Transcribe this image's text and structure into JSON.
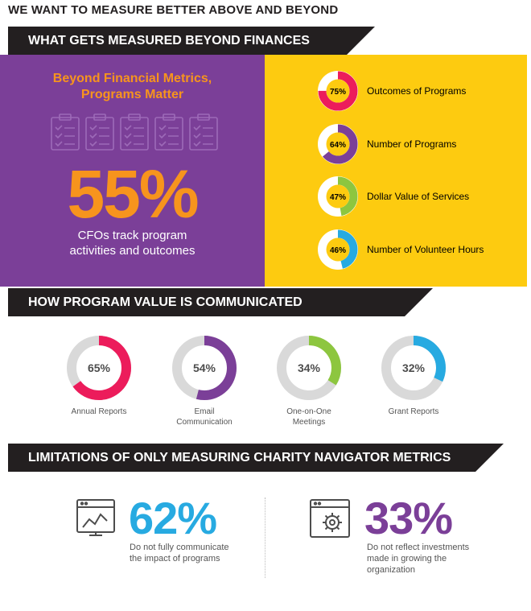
{
  "page_title": "WE WANT TO MEASURE BETTER ABOVE AND BEYOND",
  "sections": {
    "beyond_finances": "WHAT GETS MEASURED BEYOND FINANCES",
    "program_value": "HOW PROGRAM VALUE  IS COMMUNICATED",
    "limitations": "LIMITATIONS OF ONLY MEASURING CHARITY NAVIGATOR METRICS"
  },
  "highlight": {
    "heading_line1": "Beyond Financial Metrics,",
    "heading_line2": "Programs Matter",
    "value": "55%",
    "caption_line1": "CFOs track program",
    "caption_line2": "activities and outcomes"
  },
  "limits": [
    {
      "value": "62%",
      "line1": "Do not fully communicate",
      "line2": "the impact of programs",
      "line3": "",
      "color": "#27aae1"
    },
    {
      "value": "33%",
      "line1": "Do not reflect investments",
      "line2": "made in growing the",
      "line3": "organization",
      "color": "#7b3f98"
    }
  ],
  "colors": {
    "purple": "#7b3f98",
    "yellow": "#fdcb10",
    "orange": "#f7941d",
    "pink": "#ec1c5b",
    "green": "#8dc63f",
    "blue": "#27aae1",
    "grey": "#d9d9d9",
    "dark": "#231f20"
  },
  "chart_data": [
    {
      "type": "pie",
      "title": "WHAT GETS MEASURED BEYOND FINANCES",
      "categories": [
        "Outcomes of Programs",
        "Number of Programs",
        "Dollar Value of Services",
        "Number of Volunteer Hours"
      ],
      "values": [
        75,
        64,
        47,
        46
      ],
      "labels": [
        "75%",
        "64%",
        "47%",
        "46%"
      ],
      "colors": [
        "#ec1c5b",
        "#7b3f98",
        "#8dc63f",
        "#27aae1"
      ]
    },
    {
      "type": "pie",
      "title": "HOW PROGRAM VALUE  IS COMMUNICATED",
      "categories": [
        "Annual Reports",
        "Email Communication",
        "One-on-One Meetings",
        "Grant Reports"
      ],
      "caption_lines": [
        [
          "Annual Reports"
        ],
        [
          "Email",
          "Communication"
        ],
        [
          "One-on-One",
          "Meetings"
        ],
        [
          "Grant Reports"
        ]
      ],
      "values": [
        65,
        54,
        34,
        32
      ],
      "labels": [
        "65%",
        "54%",
        "34%",
        "32%"
      ],
      "colors": [
        "#ec1c5b",
        "#7b3f98",
        "#8dc63f",
        "#27aae1"
      ]
    }
  ]
}
